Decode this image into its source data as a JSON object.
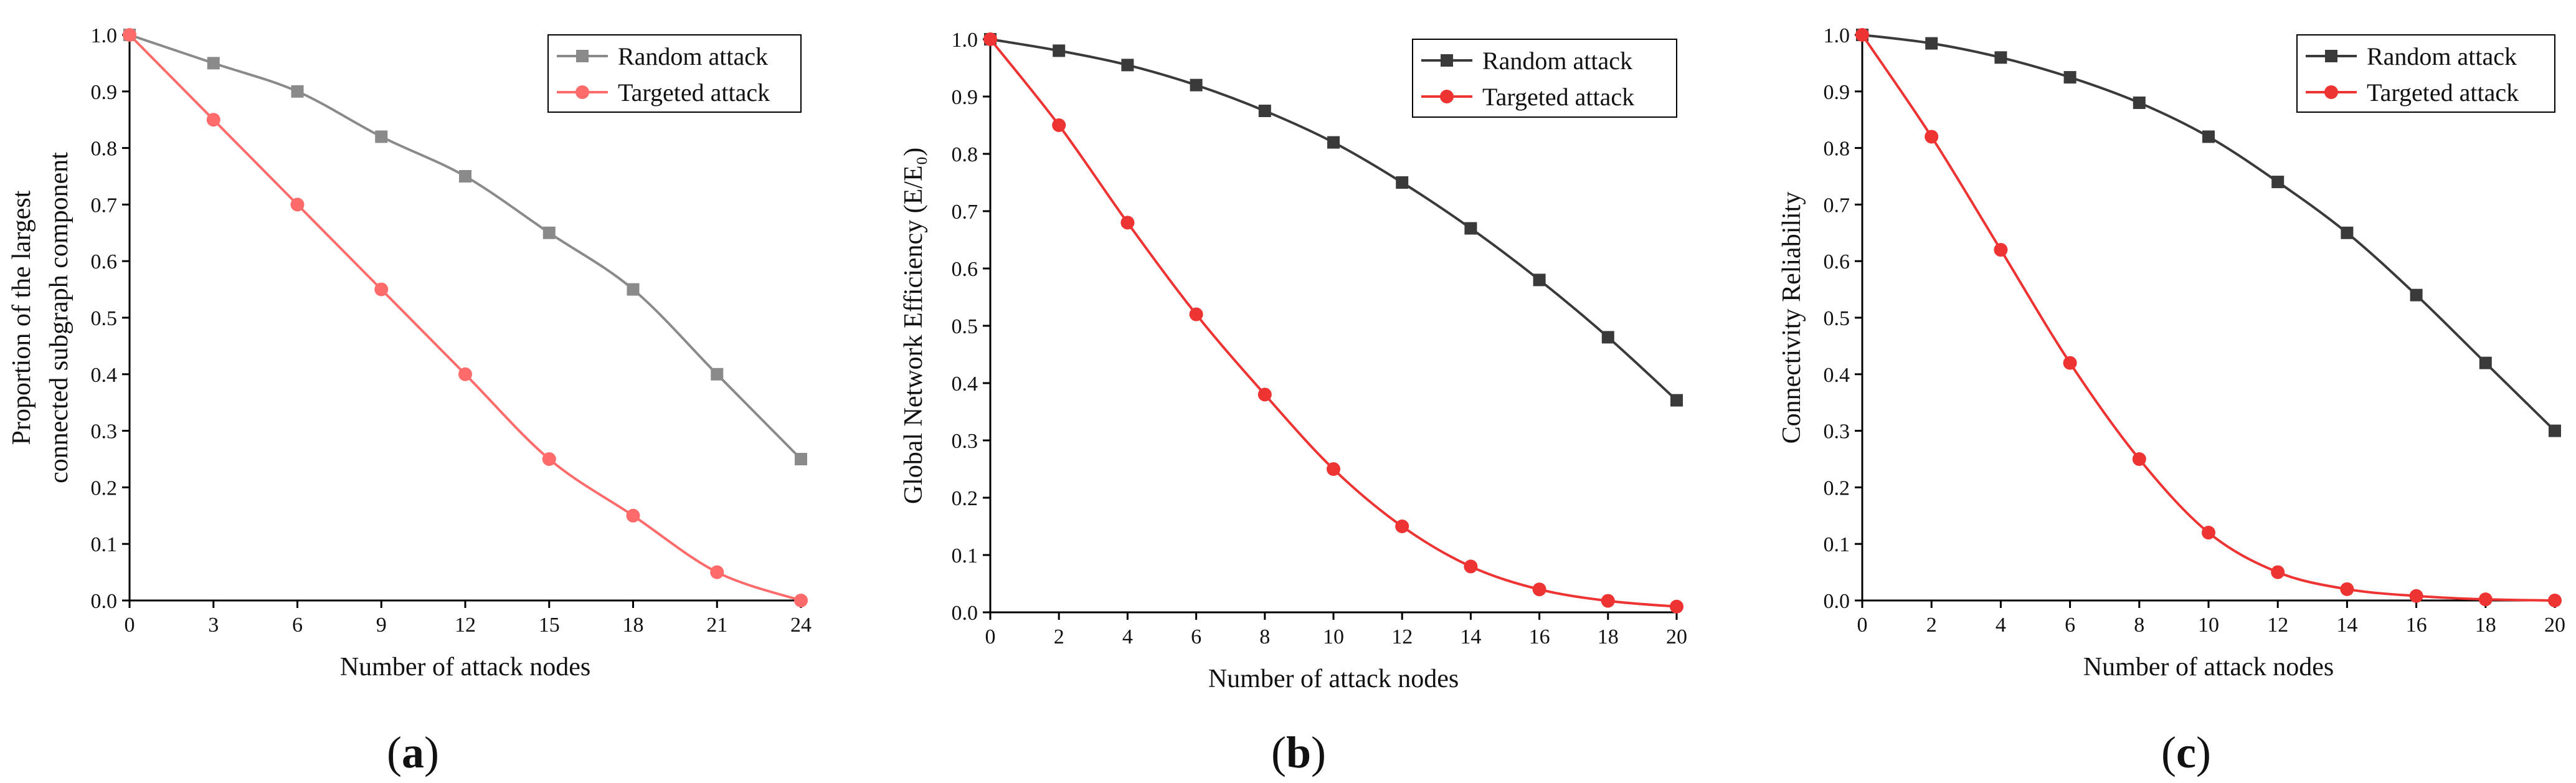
{
  "chart_data": [
    {
      "type": "line",
      "panel_label": "a",
      "xlabel": "Number of attack nodes",
      "ylabel": [
        "Proportion of the largest",
        "connected subgraph component"
      ],
      "x": [
        0,
        3,
        6,
        9,
        12,
        15,
        18,
        21,
        24
      ],
      "xlim": [
        0,
        24
      ],
      "xticks": [
        0,
        3,
        6,
        9,
        12,
        15,
        18,
        21,
        24
      ],
      "ylim": [
        0,
        1.0
      ],
      "yticks": [
        0.0,
        0.1,
        0.2,
        0.3,
        0.4,
        0.5,
        0.6,
        0.7,
        0.8,
        0.9,
        1.0
      ],
      "grid": false,
      "legend_position": "top-right",
      "series": [
        {
          "name": "Random attack",
          "color": "#8a8a8a",
          "marker": "square",
          "values": [
            1.0,
            0.95,
            0.9,
            0.82,
            0.75,
            0.65,
            0.55,
            0.4,
            0.25
          ]
        },
        {
          "name": "Targeted attack",
          "color": "#ff6b6b",
          "marker": "circle",
          "values": [
            1.0,
            0.85,
            0.7,
            0.55,
            0.4,
            0.25,
            0.15,
            0.05,
            0.0
          ]
        }
      ]
    },
    {
      "type": "line",
      "panel_label": "b",
      "xlabel": "Number of attack nodes",
      "ylabel": [
        "Global Network Efficiency (E/E₀)"
      ],
      "x": [
        0,
        2,
        4,
        6,
        8,
        10,
        12,
        14,
        16,
        18,
        20
      ],
      "xlim": [
        0,
        20
      ],
      "xticks": [
        0,
        2,
        4,
        6,
        8,
        10,
        12,
        14,
        16,
        18,
        20
      ],
      "ylim": [
        0,
        1.0
      ],
      "yticks": [
        0.0,
        0.1,
        0.2,
        0.3,
        0.4,
        0.5,
        0.6,
        0.7,
        0.8,
        0.9,
        1.0
      ],
      "grid": false,
      "legend_position": "top-right",
      "series": [
        {
          "name": "Random attack",
          "color": "#3a3a3a",
          "marker": "square",
          "values": [
            1.0,
            0.98,
            0.955,
            0.92,
            0.875,
            0.82,
            0.75,
            0.67,
            0.58,
            0.48,
            0.37
          ]
        },
        {
          "name": "Targeted attack",
          "color": "#ee3333",
          "marker": "circle",
          "values": [
            1.0,
            0.85,
            0.68,
            0.52,
            0.38,
            0.25,
            0.15,
            0.08,
            0.04,
            0.02,
            0.01
          ]
        }
      ]
    },
    {
      "type": "line",
      "panel_label": "c",
      "xlabel": "Number of attack nodes",
      "ylabel": [
        "Connectivity Reliability"
      ],
      "x": [
        0,
        2,
        4,
        6,
        8,
        10,
        12,
        14,
        16,
        18,
        20
      ],
      "xlim": [
        0,
        20
      ],
      "xticks": [
        0,
        2,
        4,
        6,
        8,
        10,
        12,
        14,
        16,
        18,
        20
      ],
      "ylim": [
        0,
        1.0
      ],
      "yticks": [
        0.0,
        0.1,
        0.2,
        0.3,
        0.4,
        0.5,
        0.6,
        0.7,
        0.8,
        0.9,
        1.0
      ],
      "grid": false,
      "legend_position": "top-right",
      "series": [
        {
          "name": "Random attack",
          "color": "#3a3a3a",
          "marker": "square",
          "values": [
            1.0,
            0.985,
            0.96,
            0.925,
            0.88,
            0.82,
            0.74,
            0.65,
            0.54,
            0.42,
            0.3
          ]
        },
        {
          "name": "Targeted attack",
          "color": "#ee3333",
          "marker": "circle",
          "values": [
            1.0,
            0.82,
            0.62,
            0.42,
            0.25,
            0.12,
            0.05,
            0.02,
            0.008,
            0.002,
            0.0
          ]
        }
      ]
    }
  ]
}
